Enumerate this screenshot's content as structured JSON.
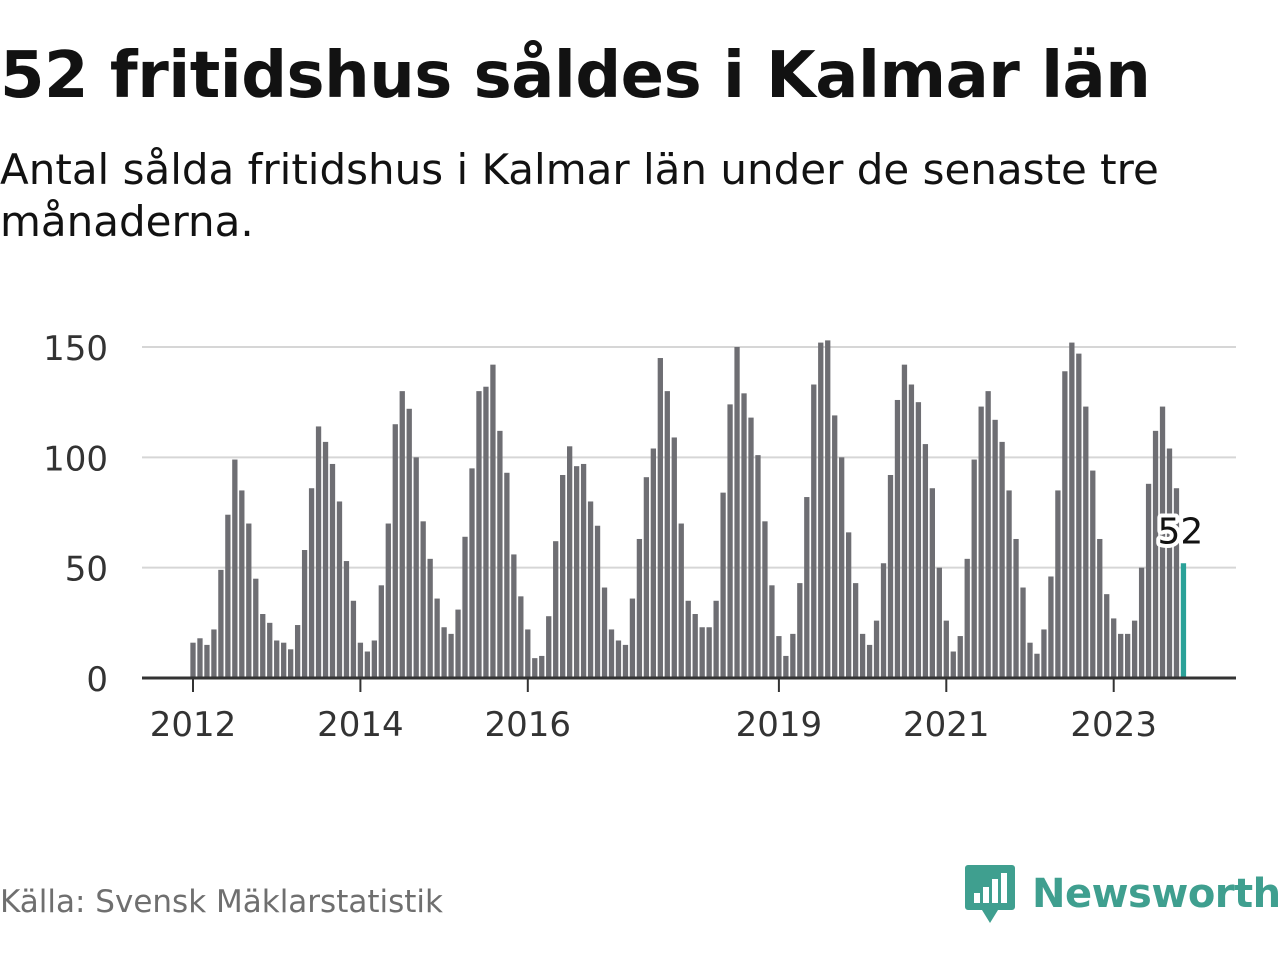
{
  "title": "52 fritidshus såldes i Kalmar län",
  "subtitle": "Antal sålda fritidshus i Kalmar län under de senaste tre månaderna.",
  "source": "Källa: Svensk Mäklarstatistik",
  "brand": "Newsworthy",
  "colors": {
    "bar": "#6e6e73",
    "highlight": "#2aa198",
    "grid": "#d6d6d6",
    "axis": "#333333",
    "brand": "#3f9f8f"
  },
  "chart_data": {
    "type": "bar",
    "title": "52 fritidshus såldes i Kalmar län",
    "subtitle": "Antal sålda fritidshus i Kalmar län under de senaste tre månaderna.",
    "xlabel": "",
    "ylabel": "",
    "ylim": [
      0,
      150
    ],
    "yticks": [
      0,
      50,
      100,
      150
    ],
    "x_tick_labels": [
      {
        "label": "2012",
        "index": 0
      },
      {
        "label": "2014",
        "index": 24
      },
      {
        "label": "2016",
        "index": 48
      },
      {
        "label": "2019",
        "index": 84
      },
      {
        "label": "2021",
        "index": 108
      },
      {
        "label": "2023",
        "index": 132
      }
    ],
    "grid": true,
    "highlight_label": "52",
    "highlight_index": 142,
    "values": [
      16,
      18,
      15,
      22,
      49,
      74,
      99,
      85,
      70,
      45,
      29,
      25,
      17,
      16,
      13,
      24,
      58,
      86,
      114,
      107,
      97,
      80,
      53,
      35,
      16,
      12,
      17,
      42,
      70,
      115,
      130,
      122,
      100,
      71,
      54,
      36,
      23,
      20,
      31,
      64,
      95,
      130,
      132,
      142,
      112,
      93,
      56,
      37,
      22,
      9,
      10,
      28,
      62,
      92,
      105,
      96,
      97,
      80,
      69,
      41,
      22,
      17,
      15,
      36,
      63,
      91,
      104,
      145,
      130,
      109,
      70,
      35,
      29,
      23,
      23,
      35,
      84,
      124,
      150,
      129,
      118,
      101,
      71,
      42,
      19,
      10,
      20,
      43,
      82,
      133,
      152,
      153,
      119,
      100,
      66,
      43,
      20,
      15,
      26,
      52,
      92,
      126,
      142,
      133,
      125,
      106,
      86,
      50,
      26,
      12,
      19,
      54,
      99,
      123,
      130,
      117,
      107,
      85,
      63,
      41,
      16,
      11,
      22,
      46,
      85,
      139,
      152,
      147,
      123,
      94,
      63,
      38,
      27,
      20,
      20,
      26,
      50,
      88,
      112,
      123,
      104,
      86,
      52
    ]
  }
}
